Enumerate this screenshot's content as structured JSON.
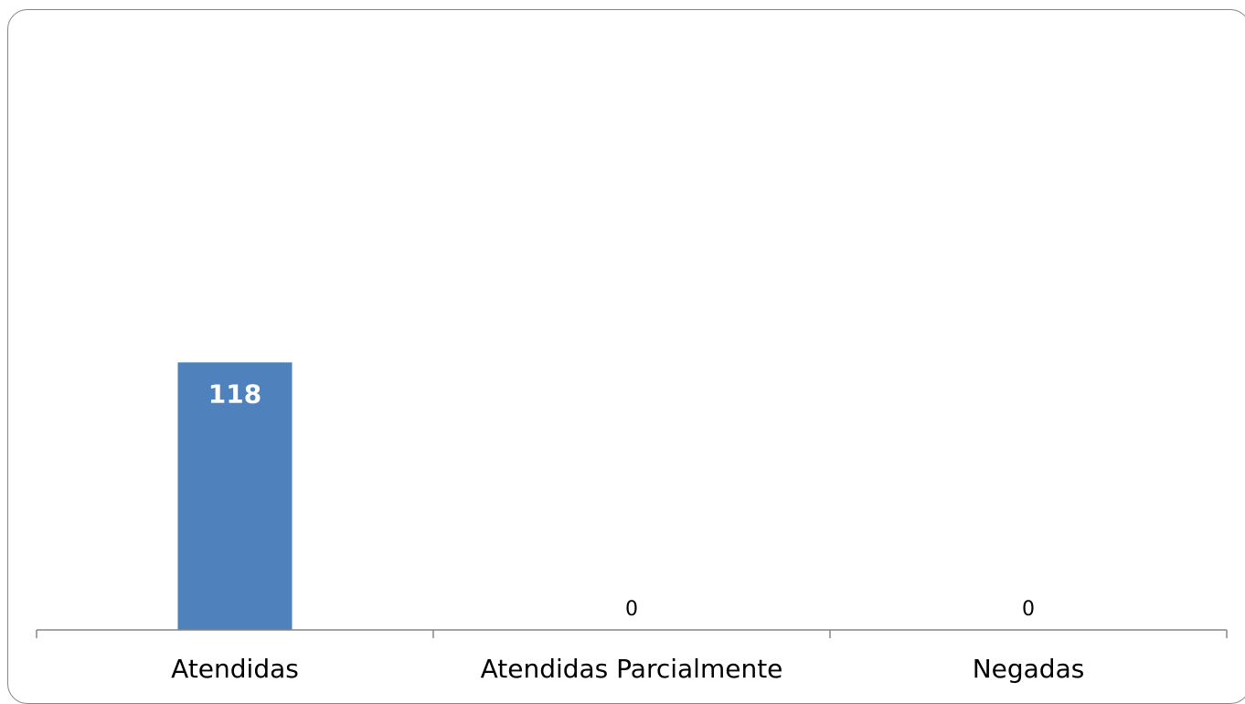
{
  "chart_data": {
    "type": "bar",
    "categories": [
      "Atendidas",
      "Atendidas Parcialmente",
      "Negadas"
    ],
    "values": [
      118,
      0,
      0
    ],
    "data_labels": [
      "118",
      "0",
      "0"
    ],
    "title": "",
    "xlabel": "",
    "ylabel": "",
    "ylim": [
      0,
      250
    ],
    "bar_color": "#4F81BD",
    "axis_color": "#868686",
    "grid": false,
    "legend": false
  }
}
